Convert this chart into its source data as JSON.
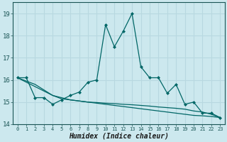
{
  "xlabel": "Humidex (Indice chaleur)",
  "bg_color": "#cce8ee",
  "line_color": "#006666",
  "grid_color": "#b8d8e0",
  "xlim": [
    -0.5,
    23.5
  ],
  "ylim": [
    14,
    19.5
  ],
  "yticks": [
    14,
    15,
    16,
    17,
    18,
    19
  ],
  "xticks": [
    0,
    1,
    2,
    3,
    4,
    5,
    6,
    7,
    8,
    9,
    10,
    11,
    12,
    13,
    14,
    15,
    16,
    17,
    18,
    19,
    20,
    21,
    22,
    23
  ],
  "series1_x": [
    0,
    1,
    2,
    3,
    4,
    5,
    6,
    7,
    8,
    9,
    10,
    11,
    12,
    13,
    14,
    15,
    16,
    17,
    18,
    19,
    20,
    21,
    22,
    23
  ],
  "series1_y": [
    16.1,
    16.1,
    15.2,
    15.2,
    14.9,
    15.1,
    15.3,
    15.45,
    15.9,
    16.0,
    18.5,
    17.5,
    18.2,
    19.0,
    16.6,
    16.1,
    16.1,
    15.4,
    15.8,
    14.9,
    15.0,
    14.5,
    14.5,
    14.3
  ],
  "series2_x": [
    0,
    1,
    2,
    3,
    4,
    5,
    6,
    7,
    8,
    9,
    10,
    11,
    12,
    13,
    14,
    15,
    16,
    17,
    18,
    19,
    20,
    21,
    22,
    23
  ],
  "series2_y": [
    16.1,
    15.9,
    15.7,
    15.5,
    15.3,
    15.2,
    15.1,
    15.05,
    15.0,
    14.95,
    14.9,
    14.85,
    14.8,
    14.75,
    14.7,
    14.65,
    14.6,
    14.55,
    14.5,
    14.45,
    14.4,
    14.38,
    14.35,
    14.3
  ],
  "series3_x": [
    0,
    1,
    2,
    3,
    4,
    5,
    6,
    7,
    8,
    9,
    10,
    11,
    12,
    13,
    14,
    15,
    16,
    17,
    18,
    19,
    20,
    21,
    22,
    23
  ],
  "series3_y": [
    16.1,
    15.95,
    15.8,
    15.55,
    15.3,
    15.15,
    15.1,
    15.05,
    15.0,
    14.98,
    14.95,
    14.93,
    14.9,
    14.88,
    14.85,
    14.82,
    14.78,
    14.75,
    14.72,
    14.68,
    14.6,
    14.55,
    14.45,
    14.3
  ]
}
